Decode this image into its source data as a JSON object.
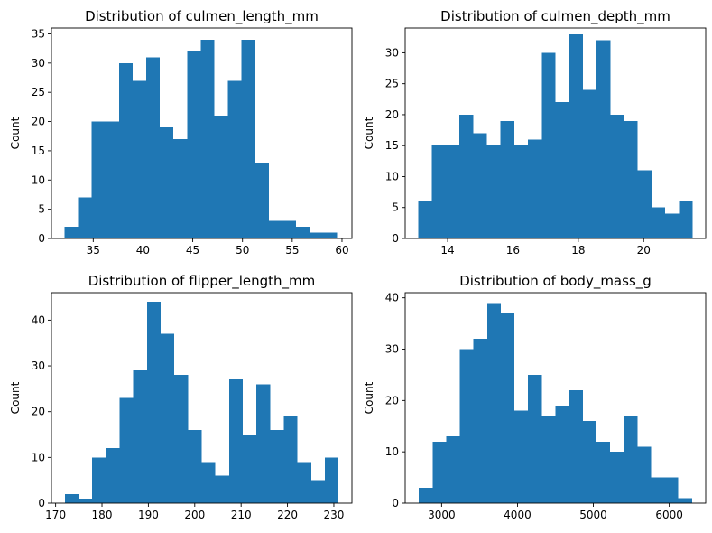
{
  "figure": {
    "bar_color": "#1f77b4",
    "background": "#ffffff"
  },
  "chart_data": [
    {
      "type": "bar",
      "title": "Distribution of culmen_length_mm",
      "xlabel": "",
      "ylabel": "Count",
      "xlim": [
        30.8,
        61.0
      ],
      "ylim": [
        0,
        36
      ],
      "xticks": [
        35,
        40,
        45,
        50,
        55,
        60
      ],
      "yticks": [
        0,
        5,
        10,
        15,
        20,
        25,
        30,
        35
      ],
      "grid": false,
      "bin_edges": [
        32.1,
        33.47,
        34.84,
        36.21,
        37.58,
        38.95,
        40.32,
        41.69,
        43.06,
        44.43,
        45.8,
        47.17,
        48.54,
        49.91,
        51.28,
        52.65,
        54.02,
        55.39,
        56.76,
        58.13,
        59.5
      ],
      "values": [
        2,
        7,
        20,
        20,
        30,
        27,
        31,
        19,
        17,
        32,
        34,
        21,
        27,
        34,
        13,
        3,
        3,
        2,
        1,
        1
      ]
    },
    {
      "type": "bar",
      "title": "Distribution of culmen_depth_mm",
      "xlabel": "",
      "ylabel": "Count",
      "xlim": [
        12.7,
        21.9
      ],
      "ylim": [
        0,
        34
      ],
      "xticks": [
        14,
        16,
        18,
        20
      ],
      "yticks": [
        0,
        5,
        10,
        15,
        20,
        25,
        30
      ],
      "grid": false,
      "bin_edges": [
        13.1,
        13.52,
        13.94,
        14.36,
        14.78,
        15.2,
        15.62,
        16.04,
        16.46,
        16.88,
        17.3,
        17.72,
        18.14,
        18.56,
        18.98,
        19.4,
        19.82,
        20.24,
        20.66,
        21.08,
        21.5
      ],
      "values": [
        6,
        15,
        15,
        20,
        17,
        15,
        19,
        15,
        16,
        30,
        22,
        33,
        24,
        32,
        20,
        19,
        11,
        5,
        4,
        6
      ]
    },
    {
      "type": "bar",
      "title": "Distribution of flipper_length_mm",
      "xlabel": "",
      "ylabel": "Count",
      "xlim": [
        169.1,
        233.9
      ],
      "ylim": [
        0,
        46
      ],
      "xticks": [
        170,
        180,
        190,
        200,
        210,
        220,
        230
      ],
      "yticks": [
        0,
        10,
        20,
        30,
        40
      ],
      "grid": false,
      "bin_edges": [
        172,
        174.95,
        177.9,
        180.85,
        183.8,
        186.75,
        189.7,
        192.65,
        195.6,
        198.55,
        201.5,
        204.45,
        207.4,
        210.35,
        213.3,
        216.25,
        219.2,
        222.15,
        225.1,
        228.05,
        231
      ],
      "values": [
        2,
        1,
        10,
        12,
        23,
        29,
        44,
        37,
        28,
        16,
        9,
        6,
        27,
        15,
        26,
        16,
        19,
        9,
        5,
        10
      ]
    },
    {
      "type": "bar",
      "title": "Distribution of body_mass_g",
      "xlabel": "",
      "ylabel": "Count",
      "xlim": [
        2520,
        6480
      ],
      "ylim": [
        0,
        41
      ],
      "xticks": [
        3000,
        4000,
        5000,
        6000
      ],
      "yticks": [
        0,
        10,
        20,
        30,
        40
      ],
      "grid": false,
      "bin_edges": [
        2700,
        2880,
        3060,
        3240,
        3420,
        3600,
        3780,
        3960,
        4140,
        4320,
        4500,
        4680,
        4860,
        5040,
        5220,
        5400,
        5580,
        5760,
        5940,
        6120,
        6300
      ],
      "values": [
        3,
        12,
        13,
        30,
        32,
        39,
        37,
        18,
        25,
        17,
        19,
        22,
        16,
        12,
        10,
        17,
        11,
        5,
        5,
        1
      ]
    }
  ]
}
